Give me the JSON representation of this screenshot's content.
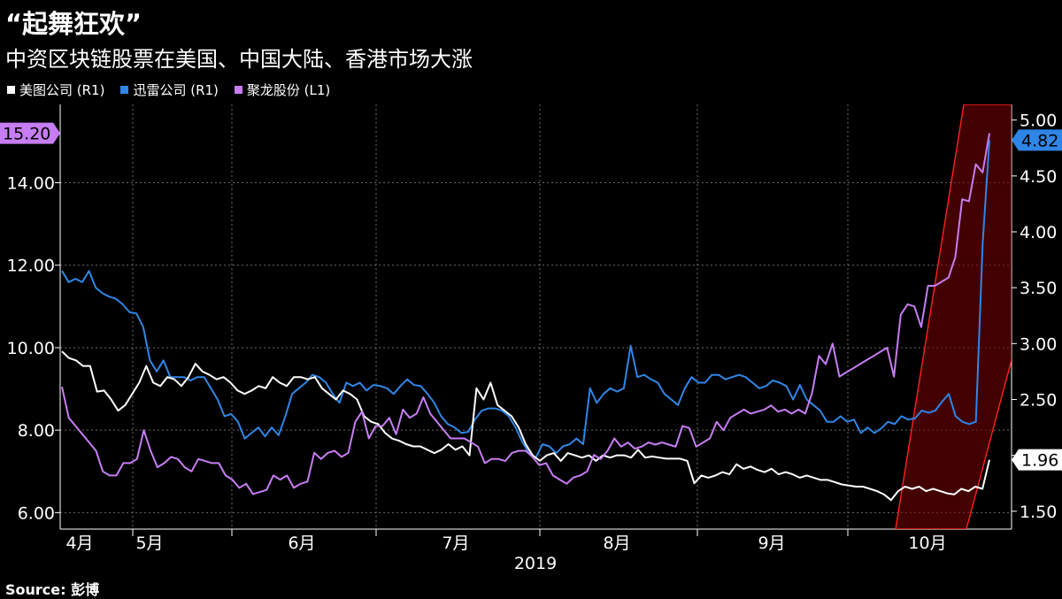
{
  "title": "“起舞狂欢”",
  "subtitle": "中资区块链股票在美国、中国大陆、香港市场大涨",
  "source": "Source: 彭博",
  "chart_data": {
    "type": "line",
    "legend": [
      {
        "label": "美图公司 (R1)",
        "color": "#ffffff"
      },
      {
        "label": "迅雷公司 (R1)",
        "color": "#2f86e6"
      },
      {
        "label": "聚龙股份 (L1)",
        "color": "#c77df3"
      }
    ],
    "xlabel": "2019",
    "x_ticks": [
      "4月",
      "5月",
      "6月",
      "7月",
      "8月",
      "9月",
      "10月"
    ],
    "y_left": {
      "ticks": [
        "6.00",
        "8.00",
        "10.00",
        "12.00",
        "14.00"
      ],
      "range": [
        5.6,
        15.9
      ]
    },
    "y_right": {
      "ticks": [
        "1.50",
        "2.00",
        "2.50",
        "3.00",
        "3.50",
        "4.00",
        "4.50",
        "5.00"
      ],
      "range": [
        1.34,
        5.14
      ]
    },
    "grid": true,
    "last_value_labels": {
      "left": {
        "text": "15.20",
        "color": "#c77df3"
      },
      "right_blue": {
        "text": "4.82",
        "color": "#2f86e6"
      },
      "right_white": {
        "text": "1.96",
        "color": "#ffffff"
      }
    },
    "series": [
      {
        "name": "聚龙股份 (L1)",
        "axis": "left",
        "color": "#c77df3",
        "values": [
          9.05,
          8.3,
          8.1,
          7.9,
          7.7,
          7.5,
          7.0,
          6.9,
          6.9,
          7.2,
          7.2,
          7.3,
          8.0,
          7.5,
          7.1,
          7.2,
          7.35,
          7.3,
          7.1,
          7.0,
          7.3,
          7.25,
          7.2,
          7.2,
          6.9,
          6.8,
          6.6,
          6.7,
          6.45,
          6.5,
          6.55,
          6.9,
          6.8,
          6.9,
          6.6,
          6.7,
          6.75,
          7.45,
          7.3,
          7.45,
          7.5,
          7.35,
          7.45,
          8.2,
          8.45,
          7.8,
          8.1,
          8.1,
          8.3,
          7.9,
          8.5,
          8.3,
          8.4,
          8.8,
          8.4,
          8.2,
          8.0,
          7.8,
          7.8,
          7.8,
          7.7,
          7.6,
          7.2,
          7.3,
          7.3,
          7.25,
          7.45,
          7.5,
          7.5,
          7.35,
          7.15,
          7.2,
          6.9,
          6.8,
          6.7,
          6.85,
          6.9,
          7.0,
          7.4,
          7.3,
          7.5,
          7.8,
          7.6,
          7.7,
          7.55,
          7.6,
          7.7,
          7.65,
          7.7,
          7.65,
          7.6,
          8.1,
          8.05,
          7.6,
          7.7,
          7.8,
          8.2,
          8.0,
          8.3,
          8.4,
          8.5,
          8.4,
          8.45,
          8.5,
          8.6,
          8.45,
          8.5,
          8.4,
          8.5,
          8.4,
          8.9,
          9.8,
          9.6,
          10.1,
          9.3,
          9.4,
          9.5,
          9.6,
          9.7,
          9.8,
          9.9,
          10.0,
          9.3,
          10.8,
          11.05,
          11.0,
          10.5,
          11.5,
          11.5,
          11.6,
          11.7,
          12.2,
          13.6,
          13.55,
          14.45,
          14.25,
          15.2
        ]
      },
      {
        "name": "迅雷公司 (R1)",
        "axis": "right",
        "color": "#2f86e6",
        "values": [
          3.65,
          3.55,
          3.58,
          3.55,
          3.65,
          3.5,
          3.45,
          3.42,
          3.4,
          3.35,
          3.28,
          3.27,
          3.15,
          2.85,
          2.75,
          2.85,
          2.7,
          2.7,
          2.7,
          2.67,
          2.7,
          2.7,
          2.6,
          2.5,
          2.35,
          2.37,
          2.3,
          2.15,
          2.2,
          2.25,
          2.17,
          2.25,
          2.18,
          2.35,
          2.55,
          2.6,
          2.65,
          2.72,
          2.7,
          2.65,
          2.55,
          2.47,
          2.65,
          2.62,
          2.65,
          2.58,
          2.63,
          2.62,
          2.6,
          2.55,
          2.62,
          2.68,
          2.63,
          2.62,
          2.55,
          2.47,
          2.35,
          2.28,
          2.25,
          2.2,
          2.21,
          2.32,
          2.4,
          2.42,
          2.42,
          2.4,
          2.35,
          2.25,
          2.12,
          2.02,
          1.98,
          2.1,
          2.08,
          2.02,
          2.08,
          2.1,
          2.15,
          2.1,
          2.6,
          2.47,
          2.55,
          2.6,
          2.57,
          2.6,
          2.98,
          2.7,
          2.72,
          2.68,
          2.65,
          2.55,
          2.5,
          2.45,
          2.6,
          2.7,
          2.65,
          2.65,
          2.72,
          2.72,
          2.68,
          2.7,
          2.72,
          2.7,
          2.65,
          2.6,
          2.62,
          2.67,
          2.65,
          2.62,
          2.5,
          2.63,
          2.5,
          2.45,
          2.4,
          2.3,
          2.3,
          2.35,
          2.3,
          2.32,
          2.2,
          2.25,
          2.2,
          2.24,
          2.3,
          2.28,
          2.35,
          2.32,
          2.33,
          2.4,
          2.38,
          2.4,
          2.48,
          2.55,
          2.35,
          2.3,
          2.28,
          2.3,
          3.9,
          4.82
        ]
      },
      {
        "name": "美图公司 (R1)",
        "axis": "right",
        "color": "#ffffff",
        "values": [
          2.93,
          2.87,
          2.85,
          2.8,
          2.8,
          2.57,
          2.58,
          2.5,
          2.4,
          2.45,
          2.55,
          2.65,
          2.8,
          2.65,
          2.62,
          2.7,
          2.68,
          2.62,
          2.7,
          2.82,
          2.75,
          2.72,
          2.68,
          2.7,
          2.65,
          2.58,
          2.55,
          2.58,
          2.62,
          2.6,
          2.7,
          2.65,
          2.62,
          2.7,
          2.7,
          2.68,
          2.7,
          2.6,
          2.55,
          2.5,
          2.58,
          2.55,
          2.5,
          2.35,
          2.3,
          2.28,
          2.2,
          2.15,
          2.13,
          2.1,
          2.08,
          2.08,
          2.05,
          2.02,
          2.05,
          2.1,
          2.05,
          2.08,
          2.0,
          2.6,
          2.5,
          2.65,
          2.45,
          2.4,
          2.35,
          2.25,
          2.1,
          2.0,
          1.95,
          2.0,
          2.02,
          1.95,
          2.02,
          2.0,
          1.98,
          2.0,
          1.95,
          2.0,
          1.98,
          2.0,
          2.0,
          1.98,
          2.05,
          1.98,
          1.99,
          1.98,
          1.97,
          1.97,
          1.97,
          1.95,
          1.75,
          1.82,
          1.8,
          1.82,
          1.85,
          1.83,
          1.92,
          1.88,
          1.9,
          1.87,
          1.85,
          1.88,
          1.83,
          1.85,
          1.83,
          1.8,
          1.82,
          1.8,
          1.78,
          1.78,
          1.76,
          1.74,
          1.73,
          1.72,
          1.72,
          1.7,
          1.68,
          1.65,
          1.6,
          1.68,
          1.72,
          1.7,
          1.72,
          1.68,
          1.7,
          1.68,
          1.66,
          1.65,
          1.7,
          1.68,
          1.72,
          1.7,
          1.96
        ]
      }
    ],
    "highlight": {
      "type": "channel",
      "color": "#ff2020"
    }
  }
}
